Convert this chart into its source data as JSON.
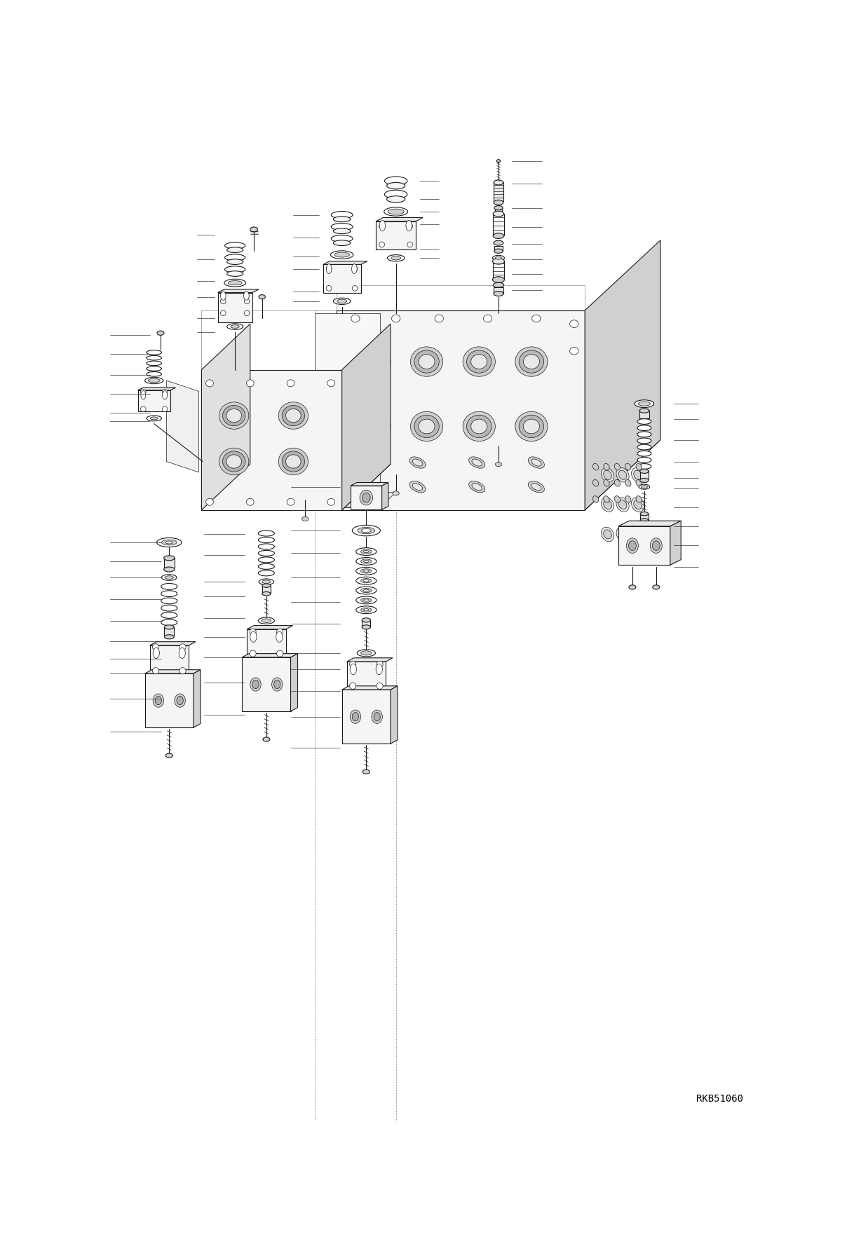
{
  "figure_width": 12.28,
  "figure_height": 17.98,
  "dpi": 100,
  "background_color": "#ffffff",
  "watermark_text": "RKB51060",
  "watermark_fontsize": 10,
  "line_color": "#1a1a1a",
  "lw_thick": 1.2,
  "lw_med": 0.8,
  "lw_thin": 0.5,
  "fill_light": "#f5f5f5",
  "fill_mid": "#e8e8e8",
  "fill_dark": "#d0d0d0",
  "fill_white": "#ffffff"
}
